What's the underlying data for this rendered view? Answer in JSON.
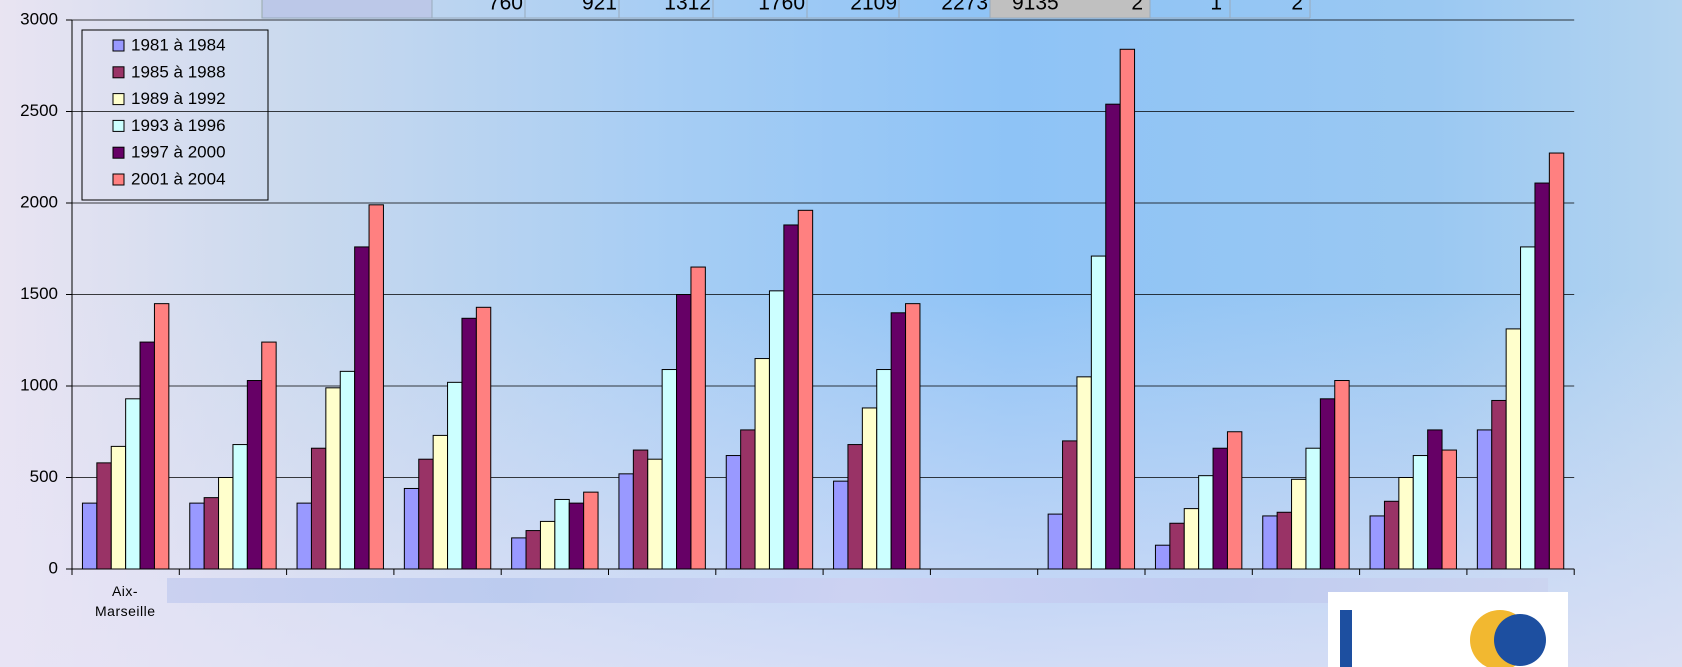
{
  "chart_data": {
    "type": "bar",
    "categories": [
      "Aix-Marseille",
      null,
      null,
      null,
      null,
      null,
      null,
      null,
      null,
      null,
      null,
      null,
      null,
      null
    ],
    "series": [
      {
        "name": "1981 à 1984",
        "color": "#9999ff",
        "values": [
          360,
          360,
          360,
          440,
          170,
          520,
          620,
          480,
          null,
          300,
          130,
          290,
          290,
          760
        ]
      },
      {
        "name": "1985 à 1988",
        "color": "#993366",
        "values": [
          580,
          390,
          660,
          600,
          210,
          650,
          760,
          680,
          null,
          700,
          250,
          310,
          370,
          921
        ]
      },
      {
        "name": "1989 à 1992",
        "color": "#ffffcc",
        "values": [
          670,
          500,
          990,
          730,
          260,
          600,
          1150,
          880,
          null,
          1050,
          330,
          490,
          500,
          1312
        ]
      },
      {
        "name": "1993 à 1996",
        "color": "#ccffff",
        "values": [
          930,
          680,
          1080,
          1020,
          380,
          1090,
          1520,
          1090,
          null,
          1710,
          510,
          660,
          620,
          1760
        ]
      },
      {
        "name": "1997 à 2000",
        "color": "#660066",
        "values": [
          1240,
          1030,
          1760,
          1370,
          360,
          1500,
          1880,
          1400,
          null,
          2540,
          660,
          930,
          760,
          2109
        ]
      },
      {
        "name": "2001 à 2004",
        "color": "#ff8080",
        "values": [
          1450,
          1240,
          1990,
          1430,
          420,
          1650,
          1960,
          1450,
          null,
          2840,
          750,
          1030,
          650,
          2273
        ]
      }
    ],
    "ylim": [
      0,
      3000
    ],
    "yticks": [
      0,
      500,
      1000,
      1500,
      2000,
      2500,
      3000
    ],
    "grid": true,
    "legend": "top-left"
  },
  "header_table": {
    "cells": [
      760,
      921,
      1312,
      1760,
      2109,
      2273,
      9135,
      2,
      1,
      2
    ]
  }
}
